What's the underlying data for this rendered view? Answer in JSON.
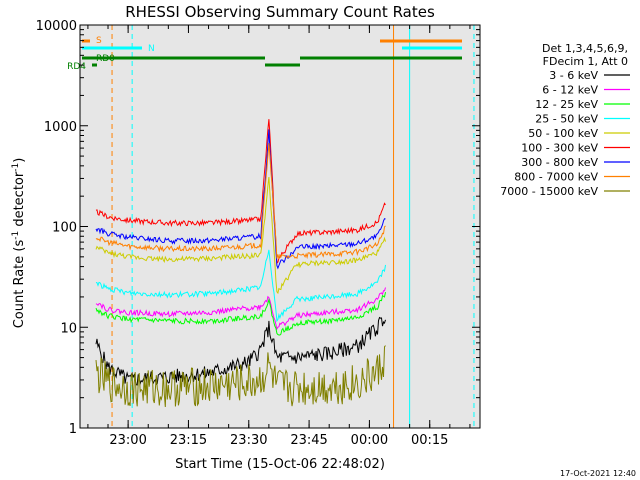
{
  "chart_data": {
    "type": "line",
    "title": "RHESSI Observing Summary Count Rates",
    "xlabel": "Start Time (15-Oct-06 22:48:02)",
    "ylabel": "Count Rate (s",
    "ylabel_sup1": "-1",
    "ylabel_mid": " detector",
    "ylabel_sup2": "-1",
    "ylabel_end": ")",
    "yscale": "log",
    "ylim": [
      1,
      10000
    ],
    "xlim": [
      "22:48:02",
      "00:27:30"
    ],
    "xticks": [
      "23:00",
      "23:15",
      "23:30",
      "23:45",
      "00:00",
      "00:15"
    ],
    "yticks": [
      "1",
      "10",
      "100",
      "1000",
      "10000"
    ],
    "legend_title": [
      "Det 1,3,4,5,6,9,",
      "FDecim 1, Att 0"
    ],
    "legend_position": "right",
    "timestamp": "17-Oct-2021 12:40",
    "flags": [
      {
        "label": "S",
        "color": "#ff8000"
      },
      {
        "label": "N",
        "color": "#00ffff"
      },
      {
        "label": "RD0",
        "color": "#008000"
      },
      {
        "label": "RD4",
        "color": "#008000"
      }
    ],
    "series": [
      {
        "name": "3 - 6 keV",
        "color": "#000000",
        "x": [
          "22:52",
          "22:55",
          "23:00",
          "23:10",
          "23:20",
          "23:30",
          "23:33",
          "23:35",
          "23:37",
          "23:42",
          "23:50",
          "23:57",
          "00:02",
          "00:04"
        ],
        "y": [
          7,
          4,
          3,
          3.2,
          3.5,
          4.5,
          6,
          10,
          5,
          5,
          5.5,
          6.5,
          10,
          13
        ]
      },
      {
        "name": "6 - 12 keV",
        "color": "#ff00ff",
        "x": [
          "22:52",
          "22:55",
          "23:00",
          "23:10",
          "23:20",
          "23:30",
          "23:33",
          "23:35",
          "23:37",
          "23:42",
          "23:50",
          "23:57",
          "00:02",
          "00:04"
        ],
        "y": [
          18,
          15,
          14,
          13.5,
          14,
          15.5,
          16,
          20,
          10,
          13,
          14,
          15,
          19,
          25
        ]
      },
      {
        "name": "12 - 25 keV",
        "color": "#00ff00",
        "x": [
          "22:52",
          "22:55",
          "23:00",
          "23:10",
          "23:20",
          "23:30",
          "23:33",
          "23:35",
          "23:37",
          "23:42",
          "23:50",
          "23:57",
          "00:02",
          "00:04"
        ],
        "y": [
          15,
          13,
          12,
          11.5,
          11.5,
          12.5,
          13,
          18,
          8.5,
          11,
          11.5,
          12.5,
          16,
          22
        ]
      },
      {
        "name": "25 - 50 keV",
        "color": "#00ffff",
        "x": [
          "22:52",
          "22:55",
          "23:00",
          "23:10",
          "23:20",
          "23:30",
          "23:33",
          "23:35",
          "23:37",
          "23:42",
          "23:50",
          "23:57",
          "00:02",
          "00:04"
        ],
        "y": [
          28,
          24,
          22,
          21,
          21.5,
          24,
          25,
          60,
          12,
          19,
          20,
          21.5,
          28,
          40
        ]
      },
      {
        "name": "50 - 100 keV",
        "color": "#cccc00",
        "x": [
          "22:52",
          "22:55",
          "23:00",
          "23:10",
          "23:20",
          "23:30",
          "23:33",
          "23:35",
          "23:37",
          "23:42",
          "23:50",
          "23:57",
          "00:02",
          "00:04"
        ],
        "y": [
          62,
          55,
          50,
          47,
          48,
          51,
          52,
          300,
          22,
          42,
          44,
          46,
          55,
          75
        ]
      },
      {
        "name": "100 - 300 keV",
        "color": "#ff0000",
        "x": [
          "22:52",
          "22:55",
          "23:00",
          "23:10",
          "23:20",
          "23:30",
          "23:33",
          "23:35",
          "23:37",
          "23:42",
          "23:50",
          "23:57",
          "00:02",
          "00:04"
        ],
        "y": [
          140,
          125,
          115,
          108,
          108,
          115,
          118,
          1200,
          45,
          85,
          88,
          92,
          110,
          170
        ]
      },
      {
        "name": "300 - 800 keV",
        "color": "#0000ff",
        "x": [
          "22:52",
          "22:55",
          "23:00",
          "23:10",
          "23:20",
          "23:30",
          "23:33",
          "23:35",
          "23:37",
          "23:42",
          "23:50",
          "23:57",
          "00:02",
          "00:04"
        ],
        "y": [
          95,
          85,
          78,
          72,
          73,
          78,
          80,
          900,
          40,
          62,
          64,
          68,
          80,
          120
        ]
      },
      {
        "name": "800 - 7000 keV",
        "color": "#ff8000",
        "x": [
          "22:52",
          "22:55",
          "23:00",
          "23:10",
          "23:20",
          "23:30",
          "23:33",
          "23:35",
          "23:37",
          "23:42",
          "23:50",
          "23:57",
          "00:02",
          "00:04"
        ],
        "y": [
          78,
          70,
          64,
          60,
          60,
          64,
          65,
          700,
          50,
          51,
          53,
          56,
          66,
          100
        ]
      },
      {
        "name": "7000 - 15000 keV",
        "color": "#808000",
        "x": [
          "22:52",
          "22:55",
          "23:00",
          "23:10",
          "23:20",
          "23:30",
          "23:33",
          "23:35",
          "23:37",
          "23:42",
          "23:50",
          "23:57",
          "00:02",
          "00:04"
        ],
        "y": [
          3.5,
          2.8,
          2.5,
          2.5,
          2.6,
          2.8,
          3,
          4,
          2.5,
          2.5,
          2.6,
          2.8,
          3.5,
          5
        ]
      }
    ]
  }
}
